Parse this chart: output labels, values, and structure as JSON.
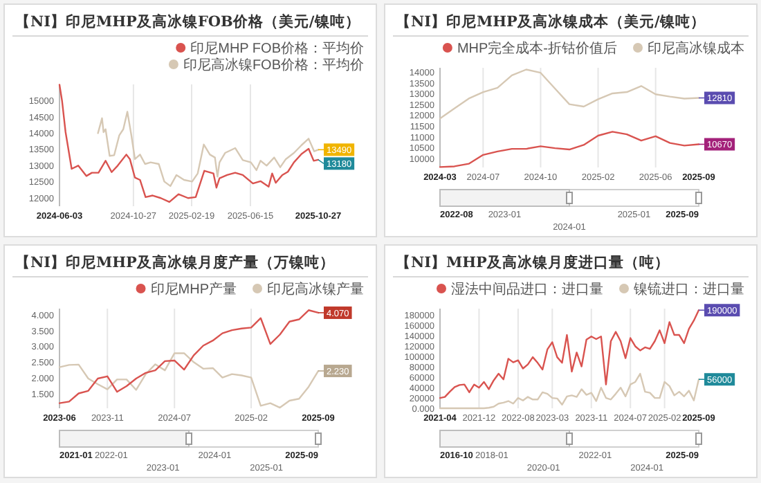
{
  "chart_data": [
    {
      "type": "line",
      "title": "【NI】印尼MHP及高冰镍FOB价格（美元/镍吨）",
      "xlim": [
        "2024-06-03",
        "2025-10-27"
      ],
      "xticks": [
        "2024-06-03",
        "2024-10-27",
        "2025-02-19",
        "2025-06-15",
        "2025-10-27"
      ],
      "ylim": [
        11750,
        15500
      ],
      "yticks": [
        12000,
        12500,
        13000,
        13500,
        14000,
        14500,
        15000
      ],
      "grid": "x",
      "legend": "top right",
      "series": [
        {
          "name": "印尼MHP FOB价格：平均价",
          "color": "#d9534f",
          "x": [
            "2024-06-03",
            "2024-06-08",
            "2024-06-15",
            "2024-06-27",
            "2024-07-10",
            "2024-07-26",
            "2024-08-06",
            "2024-08-19",
            "2024-09-02",
            "2024-09-14",
            "2024-09-26",
            "2024-10-13",
            "2024-10-20",
            "2024-10-30",
            "2024-11-09",
            "2024-11-20",
            "2024-12-04",
            "2024-12-20",
            "2025-01-06",
            "2025-01-24",
            "2025-02-12",
            "2025-02-27",
            "2025-03-16",
            "2025-04-03",
            "2025-04-09",
            "2025-04-15",
            "2025-04-30",
            "2025-05-16",
            "2025-05-31",
            "2025-06-20",
            "2025-07-05",
            "2025-07-21",
            "2025-07-28",
            "2025-08-04",
            "2025-08-17",
            "2025-08-28",
            "2025-09-09",
            "2025-09-24",
            "2025-10-08",
            "2025-10-18",
            "2025-10-27"
          ],
          "values": [
            15490,
            15000,
            14030,
            12900,
            13000,
            12680,
            12780,
            12780,
            13150,
            12800,
            13000,
            13340,
            13200,
            12630,
            12560,
            12030,
            12080,
            12000,
            11880,
            12120,
            12000,
            12030,
            12840,
            12760,
            12320,
            12610,
            12710,
            12780,
            12710,
            12450,
            12520,
            12350,
            12760,
            12470,
            12710,
            12810,
            13100,
            13360,
            13520,
            13150,
            13180
          ]
        },
        {
          "name": "印尼高冰镍FOB价格：平均价",
          "color": "#d6c8b4",
          "x": [
            "2024-08-18",
            "2024-08-26",
            "2024-08-29",
            "2024-09-02",
            "2024-09-10",
            "2024-09-19",
            "2024-09-29",
            "2024-10-07",
            "2024-10-15",
            "2024-10-23",
            "2024-10-30",
            "2024-11-09",
            "2024-11-19",
            "2024-11-30",
            "2024-12-16",
            "2024-12-27",
            "2025-01-08",
            "2025-01-20",
            "2025-02-04",
            "2025-02-20",
            "2025-03-03",
            "2025-03-15",
            "2025-03-27",
            "2025-04-06",
            "2025-04-11",
            "2025-04-15",
            "2025-04-26",
            "2025-05-16",
            "2025-05-31",
            "2025-06-16",
            "2025-06-27",
            "2025-07-05",
            "2025-07-17",
            "2025-08-01",
            "2025-08-13",
            "2025-08-24",
            "2025-09-09",
            "2025-09-24",
            "2025-10-08",
            "2025-10-19",
            "2025-10-27"
          ],
          "values": [
            14000,
            14460,
            14030,
            14120,
            13300,
            13320,
            13930,
            14120,
            14660,
            13930,
            13200,
            13340,
            13050,
            13100,
            13050,
            12510,
            12370,
            12710,
            12560,
            12510,
            12760,
            13650,
            13340,
            13250,
            12660,
            13100,
            13390,
            13540,
            13170,
            13100,
            12860,
            13150,
            13000,
            13250,
            12950,
            13200,
            13390,
            13630,
            13830,
            13440,
            13490
          ]
        }
      ],
      "annotations": [
        {
          "text": "13490",
          "x": "2025-10-27",
          "y": 13490
        },
        {
          "text": "13180",
          "x": "2025-10-27",
          "y": 13180
        }
      ]
    },
    {
      "type": "line",
      "title": "【NI】印尼MHP及高冰镍成本（美元/镍吨）",
      "categories": [
        "2024-03",
        null,
        null,
        "2024-07",
        null,
        null,
        null,
        "2024-10",
        null,
        null,
        null,
        "2025-02",
        null,
        null,
        null,
        "2025-06",
        null,
        null,
        "2025-09"
      ],
      "ylim": [
        9600,
        14200
      ],
      "yticks": [
        10000,
        10500,
        11000,
        11500,
        12000,
        12500,
        13000,
        13500,
        14000
      ],
      "grid": "x",
      "legend": "top right",
      "series": [
        {
          "name": "MHP完全成本-折钴价值后",
          "color": "#d9534f",
          "values": [
            9620,
            9650,
            9770,
            10180,
            10340,
            10460,
            10460,
            10580,
            10490,
            10430,
            10640,
            11070,
            11250,
            11130,
            10840,
            11040,
            10730,
            10610,
            10670
          ]
        },
        {
          "name": "印尼高冰镍成本",
          "color": "#d6c8b4",
          "values": [
            11860,
            12320,
            12780,
            13080,
            13280,
            13850,
            14120,
            13970,
            13240,
            12520,
            12410,
            12750,
            13020,
            13080,
            13360,
            12980,
            12870,
            12780,
            12810
          ]
        }
      ],
      "annotations": [
        {
          "text": "12810",
          "x": "2025-09",
          "y": 12810
        },
        {
          "text": "10670",
          "x": "2025-09",
          "y": 10670
        },
        "2022-08",
        "2023-01",
        "2024-01",
        "2025-01",
        "2025-09"
      ]
    },
    {
      "type": "line",
      "title": "【NI】印尼MHP及高冰镍月度产量（万镍吨）",
      "categories": [
        "2023-06",
        null,
        null,
        null,
        null,
        "2023-11",
        null,
        null,
        null,
        null,
        null,
        null,
        "2024-07",
        null,
        null,
        null,
        null,
        null,
        null,
        null,
        "2025-02",
        null,
        null,
        null,
        null,
        null,
        null,
        "2025-09"
      ],
      "ylim": [
        1.05,
        4.2
      ],
      "yticks": [
        {
          "value": 1.5,
          "label": "1.500"
        },
        {
          "value": 2,
          "label": "2.000"
        },
        {
          "value": 2.5,
          "label": "2.500"
        },
        {
          "value": 3,
          "label": "3.000"
        },
        {
          "value": 3.5,
          "label": "3.500"
        },
        {
          "value": 4,
          "label": "4.000"
        }
      ],
      "grid": "x",
      "legend": "top right",
      "series": [
        {
          "name": "印尼MHP产量",
          "color": "#d9534f",
          "values": [
            1.21,
            1.26,
            1.52,
            1.6,
            1.99,
            2.06,
            1.57,
            1.75,
            1.99,
            2.17,
            2.25,
            2.54,
            2.56,
            2.27,
            2.72,
            3.03,
            3.19,
            3.42,
            3.52,
            3.57,
            3.6,
            3.9,
            3.08,
            3.38,
            3.79,
            3.86,
            4.15,
            4.07
          ]
        },
        {
          "name": "印尼高冰镍产量",
          "color": "#d6c8b4",
          "values": [
            2.35,
            2.42,
            2.43,
            1.99,
            1.81,
            1.65,
            1.96,
            1.96,
            1.63,
            2.13,
            2.44,
            2.25,
            2.79,
            2.79,
            2.51,
            2.3,
            2.32,
            2.02,
            2.13,
            2.09,
            2.02,
            1.13,
            1.21,
            1.07,
            1.29,
            1.35,
            1.73,
            2.23
          ]
        }
      ],
      "annotations": [
        {
          "text": "4.070",
          "x": "2025-09",
          "y": 4.07
        },
        {
          "text": "2.230",
          "x": "2025-09",
          "y": 2.23
        },
        "2021-01",
        "2022-01",
        "2023-01",
        "2024-01",
        "2025-01",
        "2025-09"
      ]
    },
    {
      "type": "line",
      "title": "【NI】MHP及高冰镍月度进口量（吨）",
      "categories": [
        "2021-04",
        null,
        null,
        null,
        null,
        null,
        null,
        null,
        "2021-12",
        null,
        null,
        null,
        null,
        null,
        null,
        null,
        "2022-08",
        null,
        null,
        null,
        null,
        null,
        null,
        "2023-03",
        null,
        null,
        null,
        null,
        null,
        null,
        null,
        "2023-11",
        null,
        null,
        null,
        null,
        null,
        null,
        null,
        "2024-07",
        null,
        null,
        null,
        null,
        null,
        null,
        "2025-02",
        null,
        null,
        null,
        null,
        null,
        null,
        "2025-09"
      ],
      "ylim": [
        0,
        193000
      ],
      "yticks": [
        {
          "value": 0,
          "label": "0.000"
        },
        20000,
        40000,
        60000,
        80000,
        100000,
        120000,
        140000,
        160000,
        180000
      ],
      "grid": "x",
      "legend": "top right",
      "series": [
        {
          "name": "湿法中间品进口：进口量",
          "color": "#d9534f",
          "values": [
            20000,
            22000,
            32000,
            41000,
            45000,
            46000,
            31000,
            46000,
            40000,
            51000,
            37000,
            54000,
            67000,
            56000,
            96000,
            89000,
            93000,
            77000,
            85000,
            99000,
            88000,
            75000,
            114000,
            128000,
            99000,
            88000,
            142000,
            71000,
            108000,
            81000,
            133000,
            139000,
            134000,
            139000,
            46000,
            130000,
            148000,
            130000,
            97000,
            136000,
            120000,
            112000,
            118000,
            115000,
            130000,
            151000,
            126000,
            167000,
            142000,
            142000,
            126000,
            154000,
            170000,
            190000
          ]
        },
        {
          "name": "镍锍进口：进口量",
          "color": "#d6c8b4",
          "values": [
            0,
            0,
            0,
            0,
            0,
            0,
            0,
            0,
            0,
            0,
            1000,
            3000,
            9000,
            11000,
            14000,
            9000,
            20000,
            15000,
            22000,
            17000,
            17000,
            31000,
            28000,
            20000,
            19000,
            7000,
            23000,
            25000,
            22000,
            37000,
            26000,
            30000,
            14000,
            40000,
            20000,
            17000,
            28000,
            40000,
            23000,
            46000,
            51000,
            67000,
            32000,
            30000,
            20000,
            20000,
            51000,
            43000,
            25000,
            32000,
            23000,
            34000,
            15000,
            56000
          ]
        }
      ],
      "annotations": [
        {
          "text": "190000",
          "x": "2025-09",
          "y": 190000
        },
        {
          "text": "56000",
          "x": "2025-09",
          "y": 56000
        },
        "2016-10",
        "2018-01",
        "2020-01",
        "2022-01",
        "2024-01",
        "2025-09"
      ]
    }
  ]
}
